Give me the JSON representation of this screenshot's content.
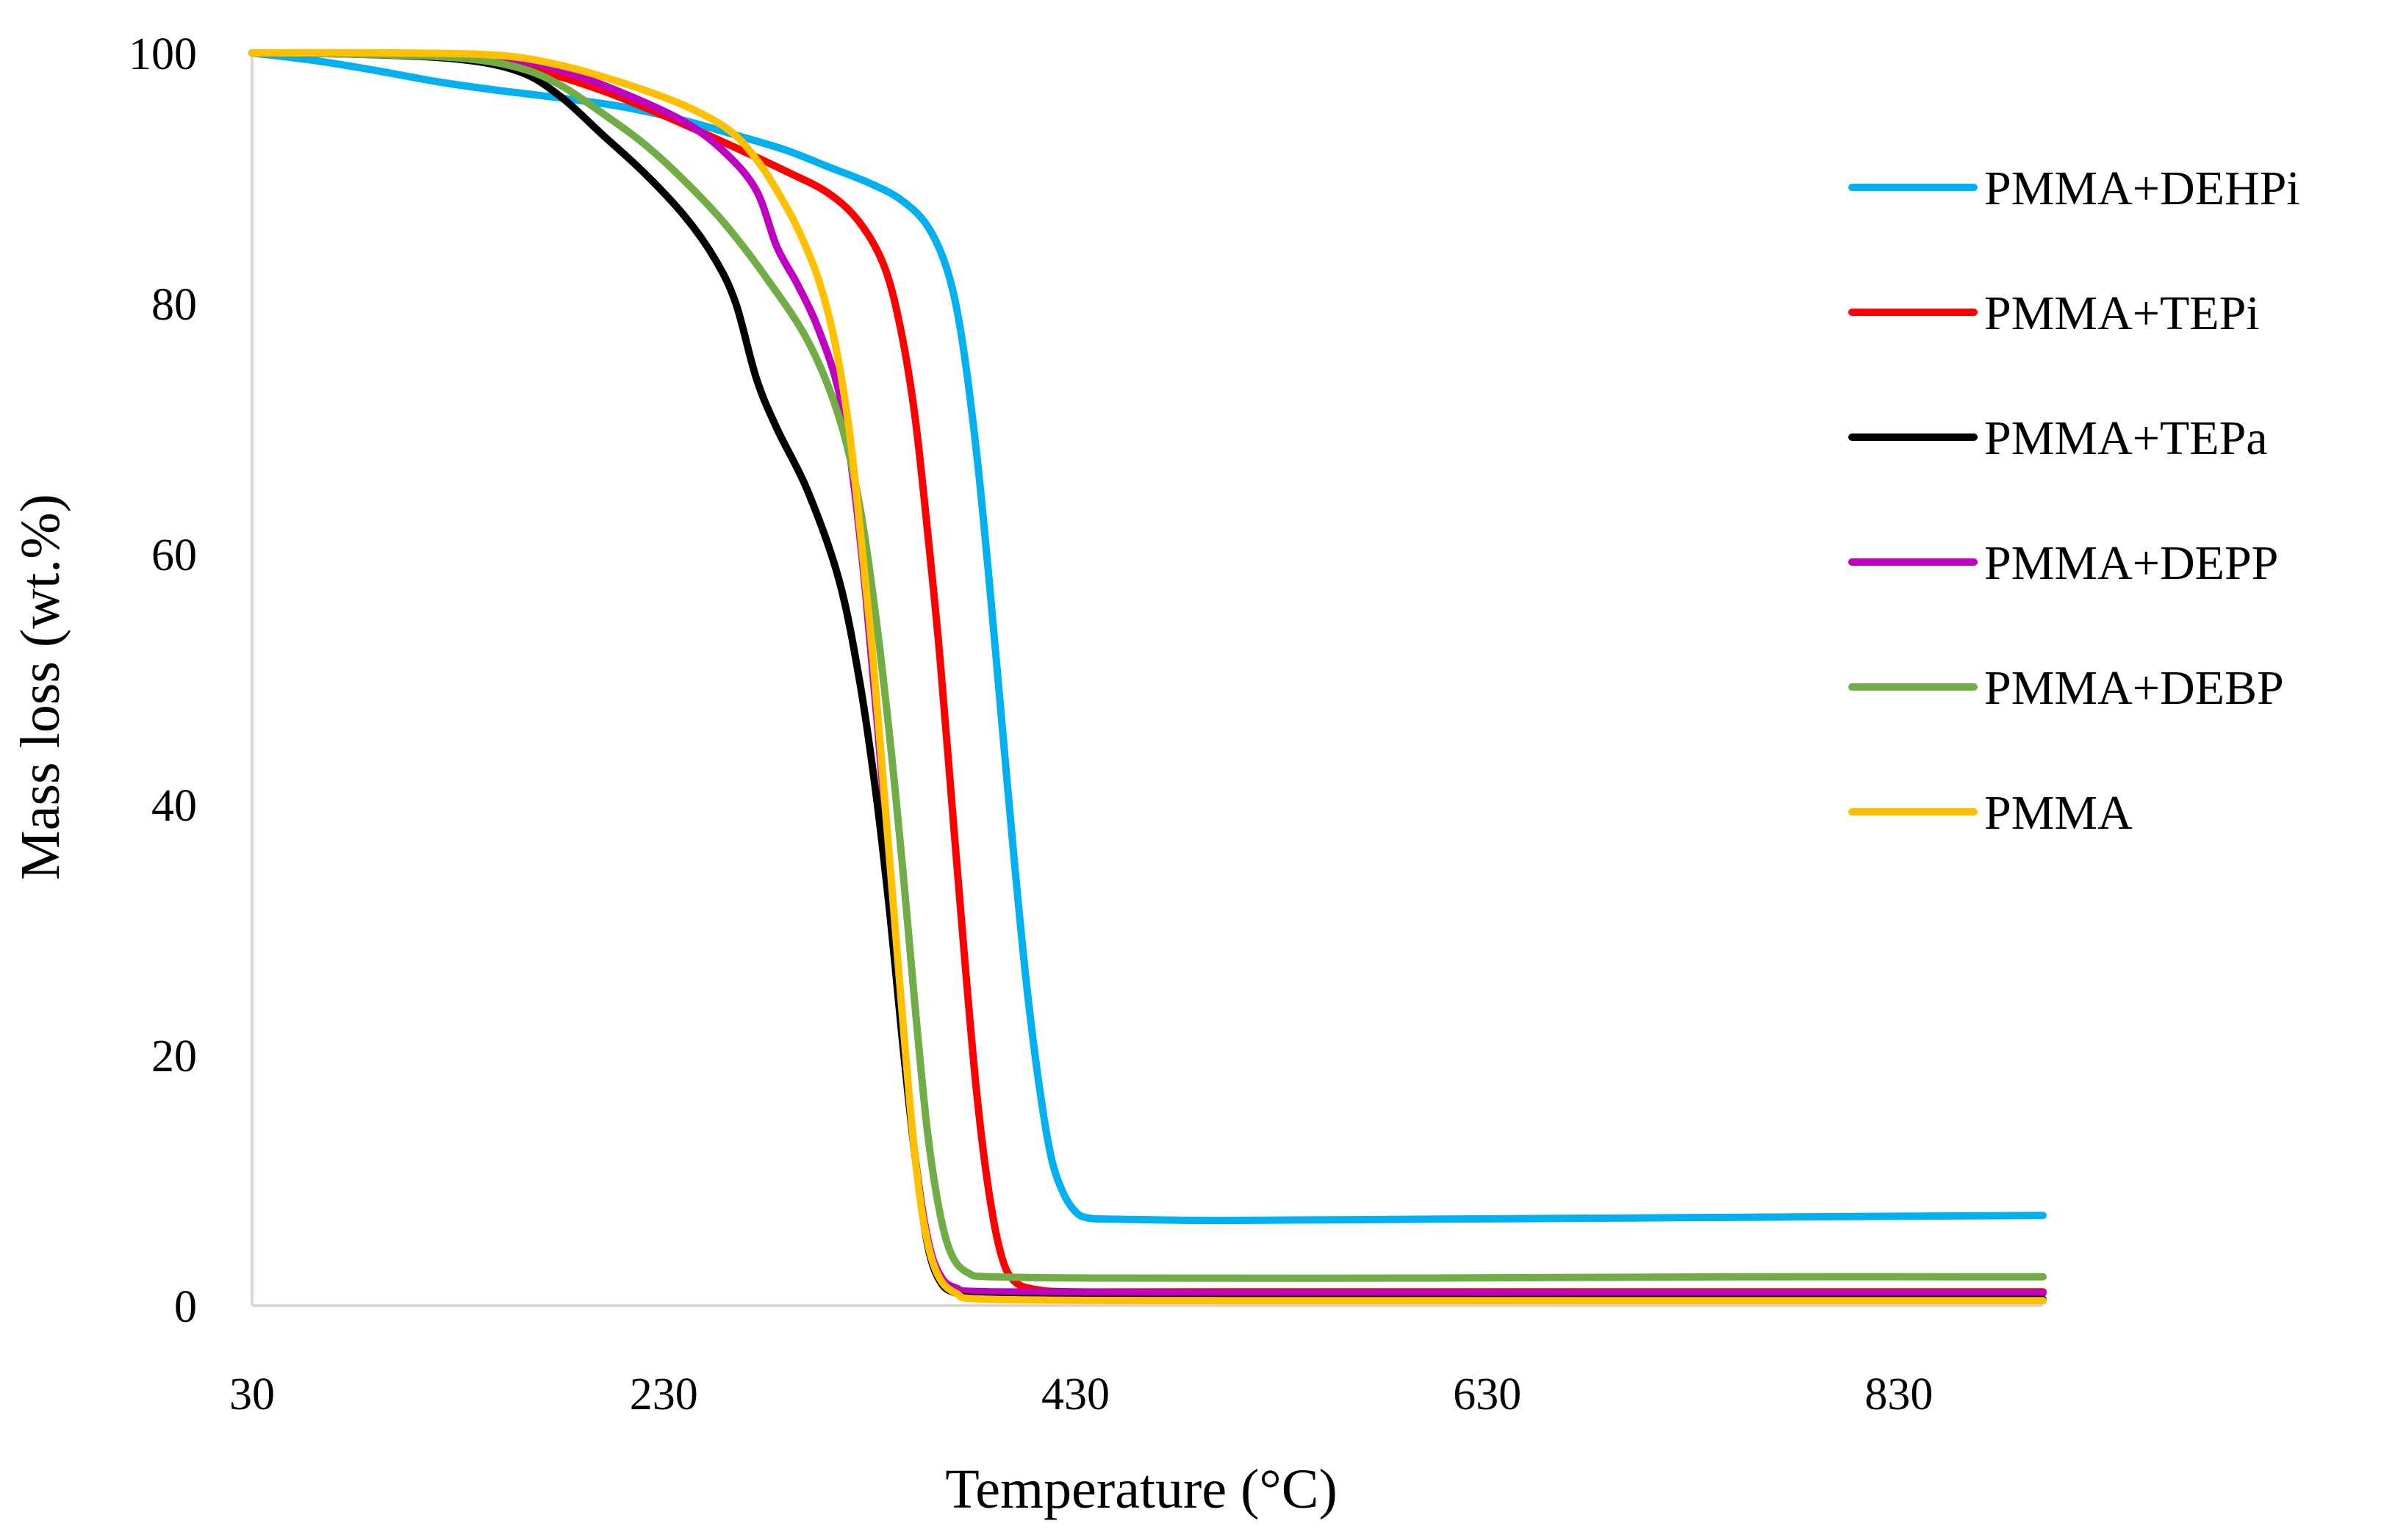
{
  "chart_data": {
    "type": "line",
    "title": "",
    "xlabel": "Temperature (°C)",
    "ylabel": "Mass loss (wt.%)",
    "xlim": [
      30,
      900
    ],
    "ylim": [
      0,
      100
    ],
    "xticks": [
      30,
      230,
      430,
      630,
      830
    ],
    "yticks": [
      0,
      20,
      40,
      60,
      80,
      100
    ],
    "grid": false,
    "legend_position": "right",
    "series": [
      {
        "name": "PMMA+DEHPi",
        "color": "#00B0F0",
        "points": [
          [
            30,
            100
          ],
          [
            60,
            99.4
          ],
          [
            90,
            98.6
          ],
          [
            120,
            97.7
          ],
          [
            150,
            97
          ],
          [
            180,
            96.4
          ],
          [
            210,
            95.7
          ],
          [
            240,
            94.6
          ],
          [
            270,
            93.2
          ],
          [
            290,
            92.2
          ],
          [
            310,
            90.9
          ],
          [
            330,
            89.6
          ],
          [
            345,
            88.3
          ],
          [
            358,
            86.2
          ],
          [
            368,
            82.5
          ],
          [
            375,
            77
          ],
          [
            382,
            68
          ],
          [
            388,
            58
          ],
          [
            394,
            47
          ],
          [
            400,
            36
          ],
          [
            406,
            26
          ],
          [
            412,
            18
          ],
          [
            418,
            12
          ],
          [
            424,
            9
          ],
          [
            430,
            7.5
          ],
          [
            436,
            7
          ],
          [
            450,
            6.9
          ],
          [
            500,
            6.8
          ],
          [
            600,
            6.9
          ],
          [
            700,
            7
          ],
          [
            800,
            7.1
          ],
          [
            900,
            7.2
          ]
        ]
      },
      {
        "name": "PMMA+TEPi",
        "color": "#FF0000",
        "points": [
          [
            30,
            100
          ],
          [
            80,
            99.9
          ],
          [
            130,
            99.6
          ],
          [
            170,
            98.5
          ],
          [
            200,
            97
          ],
          [
            230,
            95
          ],
          [
            260,
            92.8
          ],
          [
            290,
            90.5
          ],
          [
            310,
            88.8
          ],
          [
            325,
            86.5
          ],
          [
            337,
            83
          ],
          [
            345,
            78
          ],
          [
            352,
            71
          ],
          [
            358,
            62
          ],
          [
            364,
            52
          ],
          [
            370,
            40
          ],
          [
            376,
            28
          ],
          [
            382,
            17
          ],
          [
            388,
            9
          ],
          [
            394,
            4
          ],
          [
            400,
            2
          ],
          [
            410,
            1.3
          ],
          [
            430,
            1.1
          ],
          [
            500,
            1.1
          ],
          [
            700,
            1.1
          ],
          [
            900,
            1.1
          ]
        ]
      },
      {
        "name": "PMMA+TEPa",
        "color": "#000000",
        "points": [
          [
            30,
            100
          ],
          [
            80,
            99.9
          ],
          [
            130,
            99.5
          ],
          [
            160,
            98.5
          ],
          [
            180,
            96.5
          ],
          [
            200,
            93.5
          ],
          [
            220,
            90.5
          ],
          [
            240,
            87
          ],
          [
            255,
            83.5
          ],
          [
            265,
            80
          ],
          [
            275,
            74
          ],
          [
            285,
            70
          ],
          [
            300,
            65
          ],
          [
            315,
            58
          ],
          [
            325,
            50
          ],
          [
            333,
            41
          ],
          [
            340,
            31
          ],
          [
            346,
            21
          ],
          [
            352,
            12
          ],
          [
            358,
            5
          ],
          [
            364,
            2
          ],
          [
            372,
            1
          ],
          [
            390,
            0.6
          ],
          [
            500,
            0.5
          ],
          [
            700,
            0.5
          ],
          [
            900,
            0.5
          ]
        ]
      },
      {
        "name": "PMMA+DEPP",
        "color": "#C000C0",
        "points": [
          [
            30,
            100
          ],
          [
            100,
            99.9
          ],
          [
            150,
            99.6
          ],
          [
            180,
            98.6
          ],
          [
            210,
            96.8
          ],
          [
            240,
            94.5
          ],
          [
            260,
            92
          ],
          [
            275,
            89
          ],
          [
            285,
            84.5
          ],
          [
            295,
            81.5
          ],
          [
            305,
            78
          ],
          [
            315,
            73
          ],
          [
            322,
            66
          ],
          [
            328,
            57
          ],
          [
            334,
            46
          ],
          [
            340,
            34
          ],
          [
            346,
            22
          ],
          [
            352,
            12
          ],
          [
            358,
            5.5
          ],
          [
            364,
            2.5
          ],
          [
            372,
            1.4
          ],
          [
            390,
            1.1
          ],
          [
            500,
            1
          ],
          [
            700,
            1
          ],
          [
            900,
            1
          ]
        ]
      },
      {
        "name": "PMMA+DEBP",
        "color": "#70AD47",
        "points": [
          [
            30,
            100
          ],
          [
            80,
            99.9
          ],
          [
            130,
            99.6
          ],
          [
            160,
            98.8
          ],
          [
            180,
            97.4
          ],
          [
            200,
            95.2
          ],
          [
            220,
            92.8
          ],
          [
            240,
            89.8
          ],
          [
            260,
            86.3
          ],
          [
            280,
            82
          ],
          [
            300,
            77
          ],
          [
            315,
            71
          ],
          [
            325,
            64
          ],
          [
            333,
            55
          ],
          [
            340,
            45
          ],
          [
            346,
            35
          ],
          [
            352,
            24
          ],
          [
            358,
            14
          ],
          [
            364,
            7.5
          ],
          [
            370,
            4
          ],
          [
            378,
            2.6
          ],
          [
            390,
            2.3
          ],
          [
            450,
            2.2
          ],
          [
            600,
            2.2
          ],
          [
            750,
            2.3
          ],
          [
            900,
            2.3
          ]
        ]
      },
      {
        "name": "PMMA",
        "color": "#FFC000",
        "points": [
          [
            30,
            100
          ],
          [
            100,
            100
          ],
          [
            150,
            99.8
          ],
          [
            180,
            99
          ],
          [
            210,
            97.6
          ],
          [
            240,
            95.8
          ],
          [
            262,
            93.8
          ],
          [
            275,
            91.5
          ],
          [
            285,
            89
          ],
          [
            295,
            86
          ],
          [
            305,
            82
          ],
          [
            313,
            77
          ],
          [
            320,
            70
          ],
          [
            326,
            61
          ],
          [
            332,
            51
          ],
          [
            337,
            41
          ],
          [
            342,
            31
          ],
          [
            347,
            21
          ],
          [
            352,
            12
          ],
          [
            357,
            6
          ],
          [
            363,
            2.5
          ],
          [
            372,
            1
          ],
          [
            390,
            0.5
          ],
          [
            500,
            0.4
          ],
          [
            700,
            0.4
          ],
          [
            900,
            0.4
          ]
        ]
      }
    ]
  }
}
